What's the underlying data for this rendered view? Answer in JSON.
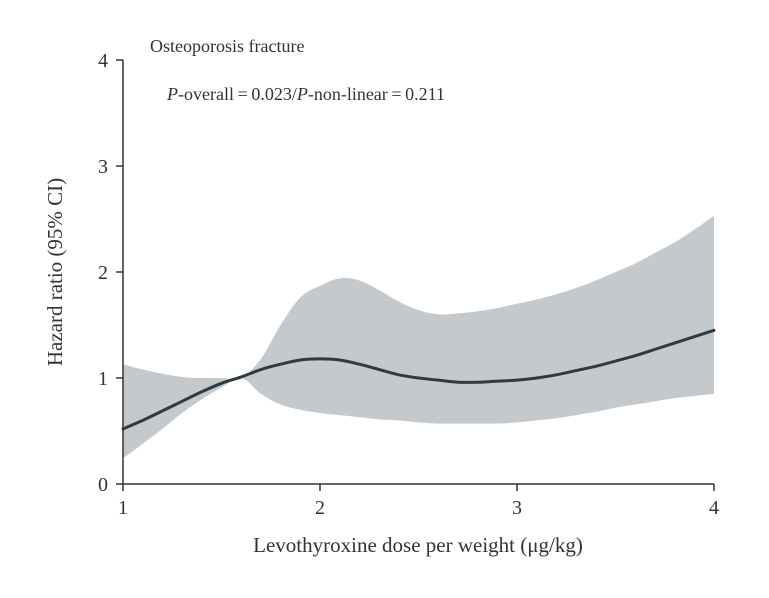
{
  "chart_data": {
    "type": "line",
    "title": "Osteoporosis fracture",
    "annotation": {
      "p1_label": "P",
      "p1_rest": "-overall = 0.023/",
      "p2_label": "P",
      "p2_rest": "-non-linear = 0.211"
    },
    "xlabel": "Levothyroxine dose per weight (μg/kg)",
    "ylabel": "Hazard ratio (95% CI)",
    "xlim": [
      1,
      4
    ],
    "ylim": [
      0,
      4
    ],
    "xticks": [
      1,
      2,
      3,
      4
    ],
    "yticks": [
      0,
      1,
      2,
      3,
      4
    ],
    "grid": false,
    "colors": {
      "line": "#2f3b40",
      "band": "#c4c9cd",
      "axis": "#333333"
    },
    "series": [
      {
        "name": "Hazard ratio",
        "x": [
          1.0,
          1.1,
          1.2,
          1.3,
          1.4,
          1.5,
          1.6,
          1.7,
          1.8,
          1.9,
          2.0,
          2.1,
          2.2,
          2.3,
          2.4,
          2.5,
          2.6,
          2.7,
          2.8,
          2.9,
          3.0,
          3.1,
          3.2,
          3.3,
          3.4,
          3.5,
          3.6,
          3.7,
          3.8,
          3.9,
          4.0
        ],
        "y": [
          0.52,
          0.6,
          0.69,
          0.78,
          0.87,
          0.95,
          1.01,
          1.08,
          1.13,
          1.17,
          1.18,
          1.17,
          1.13,
          1.08,
          1.03,
          1.0,
          0.98,
          0.96,
          0.96,
          0.97,
          0.98,
          1.0,
          1.03,
          1.07,
          1.11,
          1.16,
          1.21,
          1.27,
          1.33,
          1.39,
          1.45
        ]
      }
    ],
    "ci_band": {
      "x": [
        1.0,
        1.1,
        1.2,
        1.3,
        1.4,
        1.5,
        1.6,
        1.7,
        1.8,
        1.9,
        2.0,
        2.1,
        2.2,
        2.3,
        2.4,
        2.5,
        2.6,
        2.7,
        2.8,
        2.9,
        3.0,
        3.1,
        3.2,
        3.3,
        3.4,
        3.5,
        3.6,
        3.7,
        3.8,
        3.9,
        4.0
      ],
      "upper": [
        1.13,
        1.08,
        1.04,
        1.01,
        1.0,
        1.0,
        1.0,
        1.18,
        1.5,
        1.76,
        1.87,
        1.94,
        1.92,
        1.83,
        1.72,
        1.64,
        1.6,
        1.61,
        1.63,
        1.66,
        1.7,
        1.74,
        1.79,
        1.85,
        1.92,
        2.0,
        2.08,
        2.18,
        2.28,
        2.4,
        2.53
      ],
      "lower": [
        0.24,
        0.38,
        0.52,
        0.67,
        0.8,
        0.91,
        1.0,
        0.85,
        0.75,
        0.7,
        0.67,
        0.65,
        0.63,
        0.61,
        0.6,
        0.58,
        0.57,
        0.57,
        0.57,
        0.57,
        0.58,
        0.6,
        0.62,
        0.65,
        0.68,
        0.72,
        0.75,
        0.78,
        0.81,
        0.83,
        0.85
      ]
    }
  }
}
